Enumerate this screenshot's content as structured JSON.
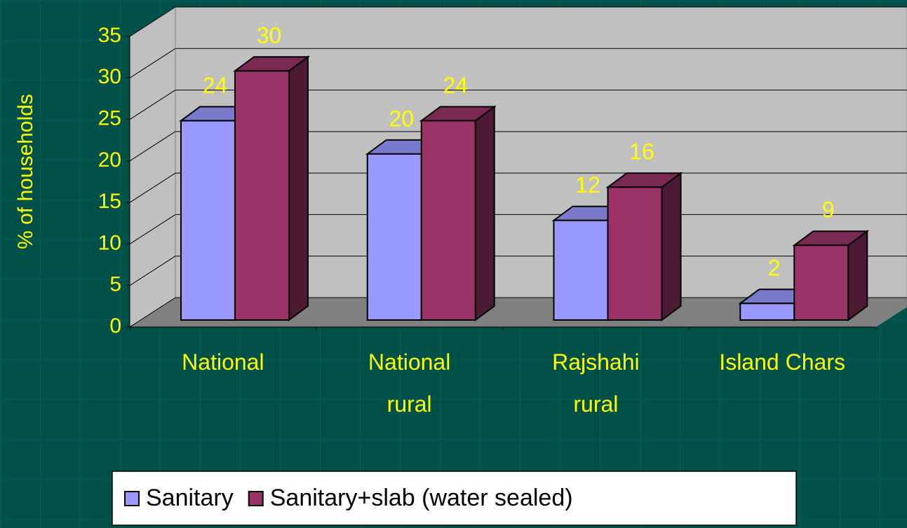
{
  "chart_data": {
    "type": "bar3d",
    "y_label": "% of households",
    "categories": [
      "National",
      "National\nrural",
      "Rajshahi\nrural",
      "Island Chars"
    ],
    "series": [
      {
        "name": "Sanitary",
        "color": "#9999ff",
        "values": [
          24,
          20,
          12,
          2
        ]
      },
      {
        "name": "Sanitary+slab (water sealed)",
        "color": "#993366",
        "values": [
          30,
          24,
          16,
          9
        ]
      }
    ],
    "ylim": [
      0,
      35
    ],
    "yticks": [
      0,
      5,
      10,
      15,
      20,
      25,
      30,
      35
    ],
    "grid": true,
    "legend": "bottom"
  }
}
